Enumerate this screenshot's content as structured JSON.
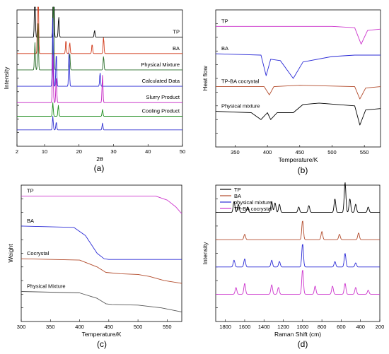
{
  "chart_data": [
    {
      "panel": "(a)",
      "type": "line",
      "xlabel": "2θ",
      "ylabel": "Intensity",
      "xlim": [
        2,
        50
      ],
      "xticks": [
        2,
        10,
        20,
        30,
        40,
        50
      ],
      "series": [
        {
          "name": "TP",
          "color": "#000000",
          "baseline": 0.8,
          "peaks": [
            [
              7.2,
              0.4
            ],
            [
              12.6,
              0.9
            ],
            [
              14.1,
              0.15
            ],
            [
              24.5,
              0.05
            ]
          ]
        },
        {
          "name": "BA",
          "color": "#d13a1a",
          "baseline": 0.68,
          "peaks": [
            [
              8.1,
              0.95
            ],
            [
              16.2,
              0.1
            ],
            [
              17.3,
              0.08
            ],
            [
              23.8,
              0.07
            ],
            [
              27.1,
              0.12
            ]
          ]
        },
        {
          "name": "Physical Mixture",
          "color": "#2a6e2a",
          "baseline": 0.56,
          "peaks": [
            [
              7.2,
              0.2
            ],
            [
              8.1,
              0.35
            ],
            [
              12.6,
              0.55
            ],
            [
              17.3,
              0.12
            ],
            [
              27.1,
              0.1
            ]
          ]
        },
        {
          "name": "Calculated Data",
          "color": "#2b2bd6",
          "baseline": 0.44,
          "peaks": [
            [
              12.4,
              0.5
            ],
            [
              13.4,
              0.25
            ],
            [
              17.1,
              0.25
            ],
            [
              26.1,
              0.1
            ]
          ]
        },
        {
          "name": "Slurry Product",
          "color": "#c21ec2",
          "baseline": 0.32,
          "peaks": [
            [
              12.4,
              0.35
            ],
            [
              13.4,
              0.2
            ],
            [
              26.8,
              0.2
            ]
          ]
        },
        {
          "name": "Cooling Product",
          "color": "#1c8c1c",
          "baseline": 0.22,
          "peaks": [
            [
              12.4,
              0.1
            ],
            [
              14.0,
              0.08
            ],
            [
              26.8,
              0.05
            ]
          ]
        },
        {
          "name": "",
          "color": "#3030d0",
          "baseline": 0.12,
          "peaks": [
            [
              12.4,
              0.1
            ],
            [
              13.4,
              0.06
            ],
            [
              26.8,
              0.05
            ]
          ]
        }
      ]
    },
    {
      "panel": "(b)",
      "type": "line",
      "xlabel": "Temperature/K",
      "ylabel": "Heat flow",
      "xlim": [
        320,
        575
      ],
      "xticks": [
        350,
        400,
        450,
        500,
        550
      ],
      "series": [
        {
          "name": "TP",
          "color": "#cc33cc",
          "points": [
            [
              320,
              0.88
            ],
            [
              500,
              0.88
            ],
            [
              535,
              0.87
            ],
            [
              545,
              0.75
            ],
            [
              555,
              0.85
            ],
            [
              575,
              0.86
            ]
          ]
        },
        {
          "name": "BA",
          "color": "#2b2bd6",
          "points": [
            [
              320,
              0.68
            ],
            [
              390,
              0.67
            ],
            [
              398,
              0.52
            ],
            [
              405,
              0.64
            ],
            [
              420,
              0.63
            ],
            [
              440,
              0.5
            ],
            [
              455,
              0.62
            ],
            [
              500,
              0.66
            ],
            [
              535,
              0.67
            ],
            [
              575,
              0.67
            ]
          ]
        },
        {
          "name": "TP-BA cocrystal",
          "color": "#b24a2a",
          "points": [
            [
              320,
              0.44
            ],
            [
              395,
              0.44
            ],
            [
              403,
              0.38
            ],
            [
              410,
              0.44
            ],
            [
              450,
              0.45
            ],
            [
              535,
              0.44
            ],
            [
              543,
              0.35
            ],
            [
              552,
              0.43
            ],
            [
              575,
              0.44
            ]
          ]
        },
        {
          "name": "Physical mixture",
          "color": "#000000",
          "points": [
            [
              320,
              0.26
            ],
            [
              375,
              0.25
            ],
            [
              390,
              0.2
            ],
            [
              400,
              0.25
            ],
            [
              405,
              0.2
            ],
            [
              415,
              0.25
            ],
            [
              440,
              0.25
            ],
            [
              455,
              0.31
            ],
            [
              480,
              0.32
            ],
            [
              535,
              0.3
            ],
            [
              543,
              0.16
            ],
            [
              552,
              0.27
            ],
            [
              575,
              0.28
            ]
          ]
        }
      ]
    },
    {
      "panel": "(c)",
      "type": "line",
      "xlabel": "Temperature/K",
      "ylabel": "Weight",
      "xlim": [
        300,
        575
      ],
      "xticks": [
        300,
        350,
        400,
        450,
        500,
        550
      ],
      "series": [
        {
          "name": "TP",
          "color": "#cc33cc",
          "points": [
            [
              300,
              0.92
            ],
            [
              530,
              0.92
            ],
            [
              550,
              0.89
            ],
            [
              565,
              0.84
            ],
            [
              575,
              0.79
            ]
          ]
        },
        {
          "name": "BA",
          "color": "#2b2bd6",
          "points": [
            [
              300,
              0.7
            ],
            [
              390,
              0.69
            ],
            [
              410,
              0.63
            ],
            [
              430,
              0.5
            ],
            [
              442,
              0.46
            ],
            [
              450,
              0.455
            ],
            [
              575,
              0.455
            ]
          ]
        },
        {
          "name": "Cocrystal",
          "color": "#b24a2a",
          "points": [
            [
              300,
              0.46
            ],
            [
              400,
              0.45
            ],
            [
              430,
              0.4
            ],
            [
              445,
              0.36
            ],
            [
              470,
              0.35
            ],
            [
              500,
              0.345
            ],
            [
              520,
              0.33
            ],
            [
              545,
              0.3
            ],
            [
              575,
              0.28
            ]
          ]
        },
        {
          "name": "Physical  Mixture",
          "color": "#555555",
          "points": [
            [
              300,
              0.22
            ],
            [
              400,
              0.21
            ],
            [
              430,
              0.17
            ],
            [
              445,
              0.13
            ],
            [
              455,
              0.125
            ],
            [
              500,
              0.12
            ],
            [
              540,
              0.1
            ],
            [
              575,
              0.07
            ]
          ]
        }
      ]
    },
    {
      "panel": "(d)",
      "type": "line",
      "xlabel": "Raman Shift (cm)",
      "ylabel": "Intensity",
      "xlim": [
        1900,
        200
      ],
      "xticks": [
        1800,
        1600,
        1400,
        1200,
        1000,
        800,
        600,
        400,
        200
      ],
      "legend": "top-left",
      "series": [
        {
          "name": "TP",
          "color": "#000000",
          "baseline": 0.8,
          "peaks": [
            [
              1710,
              0.08
            ],
            [
              1665,
              0.06
            ],
            [
              1570,
              0.04
            ],
            [
              1320,
              0.08
            ],
            [
              1285,
              0.07
            ],
            [
              1240,
              0.06
            ],
            [
              1040,
              0.04
            ],
            [
              935,
              0.05
            ],
            [
              665,
              0.1
            ],
            [
              560,
              0.22
            ],
            [
              510,
              0.1
            ],
            [
              450,
              0.06
            ],
            [
              320,
              0.04
            ]
          ]
        },
        {
          "name": "BA",
          "color": "#b24a2a",
          "baseline": 0.6,
          "peaks": [
            [
              1600,
              0.04
            ],
            [
              1000,
              0.14
            ],
            [
              800,
              0.06
            ],
            [
              618,
              0.04
            ],
            [
              420,
              0.05
            ]
          ]
        },
        {
          "name": "physical mixture",
          "color": "#2b2bd6",
          "baseline": 0.4,
          "peaks": [
            [
              1710,
              0.05
            ],
            [
              1600,
              0.06
            ],
            [
              1320,
              0.05
            ],
            [
              1240,
              0.04
            ],
            [
              1000,
              0.17
            ],
            [
              665,
              0.04
            ],
            [
              560,
              0.1
            ],
            [
              450,
              0.03
            ]
          ]
        },
        {
          "name": "TP-BA cocrystal",
          "color": "#cc33cc",
          "baseline": 0.2,
          "peaks": [
            [
              1690,
              0.05
            ],
            [
              1600,
              0.08
            ],
            [
              1320,
              0.07
            ],
            [
              1250,
              0.05
            ],
            [
              1000,
              0.18
            ],
            [
              870,
              0.06
            ],
            [
              690,
              0.06
            ],
            [
              560,
              0.08
            ],
            [
              450,
              0.05
            ],
            [
              320,
              0.03
            ]
          ]
        }
      ]
    }
  ],
  "panel_labels": [
    "(a)",
    "(b)",
    "(c)",
    "(d)"
  ]
}
